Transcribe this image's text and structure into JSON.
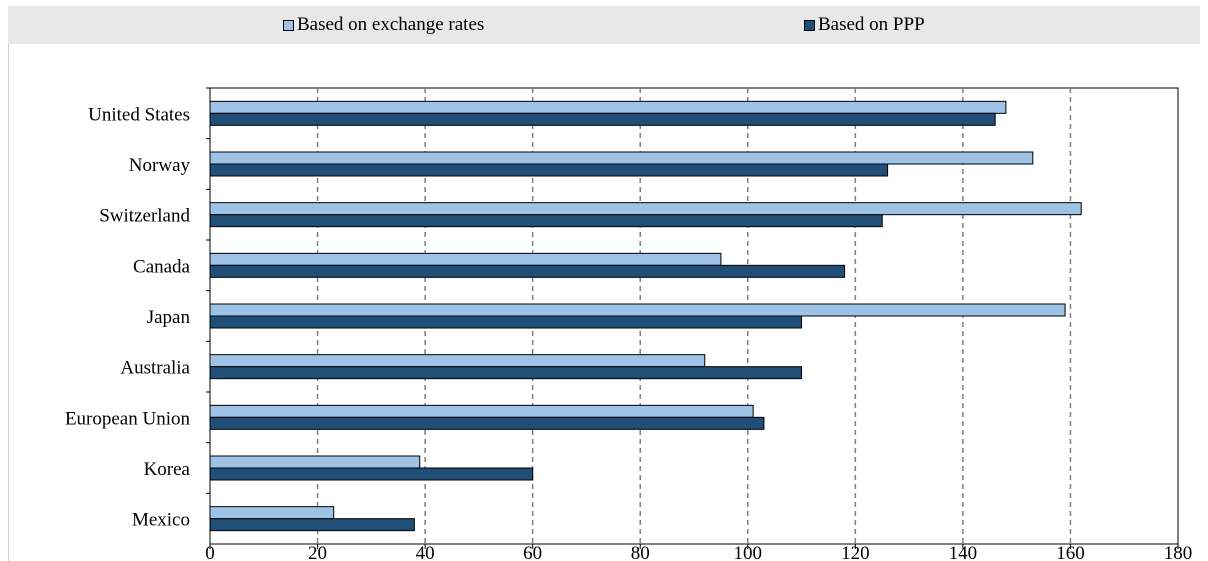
{
  "legend": {
    "series_a_label": "Based on exchange rates",
    "series_b_label": "Based on PPP"
  },
  "colors": {
    "exchange_rates": "#9dc3e6",
    "ppp": "#1f4e79",
    "legend_background": "#e8e8e8",
    "grid": "#808080"
  },
  "chart_data": {
    "type": "bar",
    "orientation": "horizontal",
    "categories": [
      "United States",
      "Norway",
      "Switzerland",
      "Canada",
      "Japan",
      "Australia",
      "European Union",
      "Korea",
      "Mexico"
    ],
    "series": [
      {
        "name": "Based on exchange rates",
        "values": [
          148,
          153,
          162,
          95,
          159,
          92,
          101,
          39,
          23
        ]
      },
      {
        "name": "Based on PPP",
        "values": [
          146,
          126,
          125,
          118,
          110,
          110,
          103,
          60,
          38
        ]
      }
    ],
    "xlim": [
      0,
      180
    ],
    "xticks": [
      0,
      20,
      40,
      60,
      80,
      100,
      120,
      140,
      160,
      180
    ],
    "grid": "vertical dashed",
    "legend_position": "top"
  }
}
